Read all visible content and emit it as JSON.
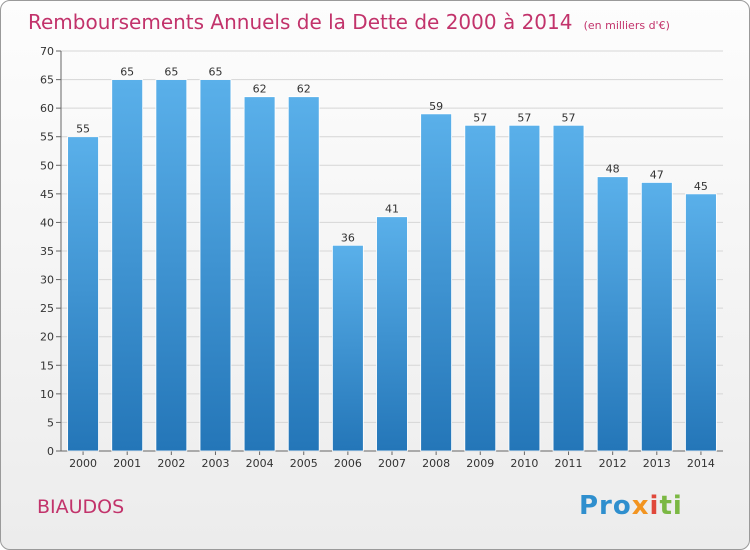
{
  "title": "Remboursements Annuels de la Dette de 2000 à 2014",
  "subtitle": "(en milliers d'€)",
  "commune": "BIAUDOS",
  "logo": {
    "p1": "Pro",
    "p2": "x",
    "p3": "i",
    "p4": "ti"
  },
  "colors": {
    "title": "#c2336b",
    "bar_top": "#5ab0ea",
    "bar_bottom": "#2476b8"
  },
  "chart_data": {
    "type": "bar",
    "title": "Remboursements Annuels de la Dette de 2000 à 2014",
    "subtitle": "(en milliers d'€)",
    "xlabel": "",
    "ylabel": "",
    "categories": [
      "2000",
      "2001",
      "2002",
      "2003",
      "2004",
      "2005",
      "2006",
      "2007",
      "2008",
      "2009",
      "2010",
      "2011",
      "2012",
      "2013",
      "2014"
    ],
    "values": [
      55,
      65,
      65,
      65,
      62,
      62,
      36,
      41,
      59,
      57,
      57,
      57,
      48,
      47,
      45
    ],
    "ylim": [
      0,
      70
    ],
    "yticks": [
      0,
      5,
      10,
      15,
      20,
      25,
      30,
      35,
      40,
      45,
      50,
      55,
      60,
      65,
      70
    ],
    "grid": true,
    "legend": "none"
  }
}
